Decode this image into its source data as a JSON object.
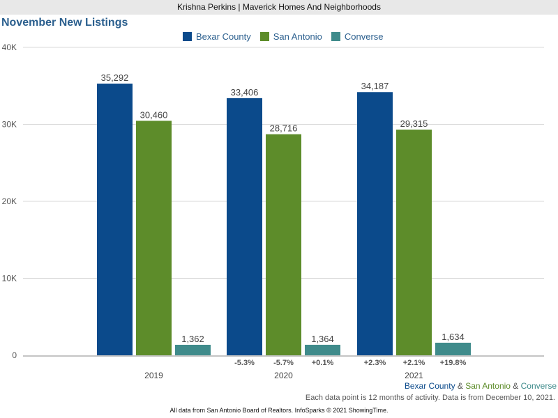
{
  "header": {
    "agent_line": "Krishna Perkins | Maverick Homes And Neighborhoods"
  },
  "colors": {
    "bexar": "#0b4a8b",
    "san_antonio": "#5d8c2a",
    "converse": "#3f8b8b",
    "title": "#2b5f8e"
  },
  "chart_data": {
    "type": "bar",
    "title": "November New Listings",
    "categories": [
      "2019",
      "2020",
      "2021"
    ],
    "series": [
      {
        "name": "Bexar County",
        "values": [
          35292,
          33406,
          34187
        ],
        "labels": [
          "35,292",
          "33,406",
          "34,187"
        ],
        "changes": [
          "",
          "-5.3%",
          "+2.3%"
        ]
      },
      {
        "name": "San Antonio",
        "values": [
          30460,
          28716,
          29315
        ],
        "labels": [
          "30,460",
          "28,716",
          "29,315"
        ],
        "changes": [
          "",
          "-5.7%",
          "+2.1%"
        ]
      },
      {
        "name": "Converse",
        "values": [
          1362,
          1364,
          1634
        ],
        "labels": [
          "1,362",
          "1,364",
          "1,634"
        ],
        "changes": [
          "",
          "+0.1%",
          "+19.8%"
        ]
      }
    ],
    "ylim": [
      0,
      40000
    ],
    "yticks": [
      0,
      10000,
      20000,
      30000,
      40000
    ],
    "ytick_labels": [
      "0",
      "10K",
      "20K",
      "30K",
      "40K"
    ],
    "xlabel": "",
    "ylabel": "",
    "grid": true,
    "legend": "top-center"
  },
  "footer": {
    "series_names": [
      "Bexar County",
      "San Antonio",
      "Converse"
    ],
    "joiner": " & ",
    "note": "Each data point is 12 months of activity. Data is from December 10, 2021.",
    "source": "All data from San Antonio Board of Realtors. InfoSparks © 2021 ShowingTime."
  }
}
